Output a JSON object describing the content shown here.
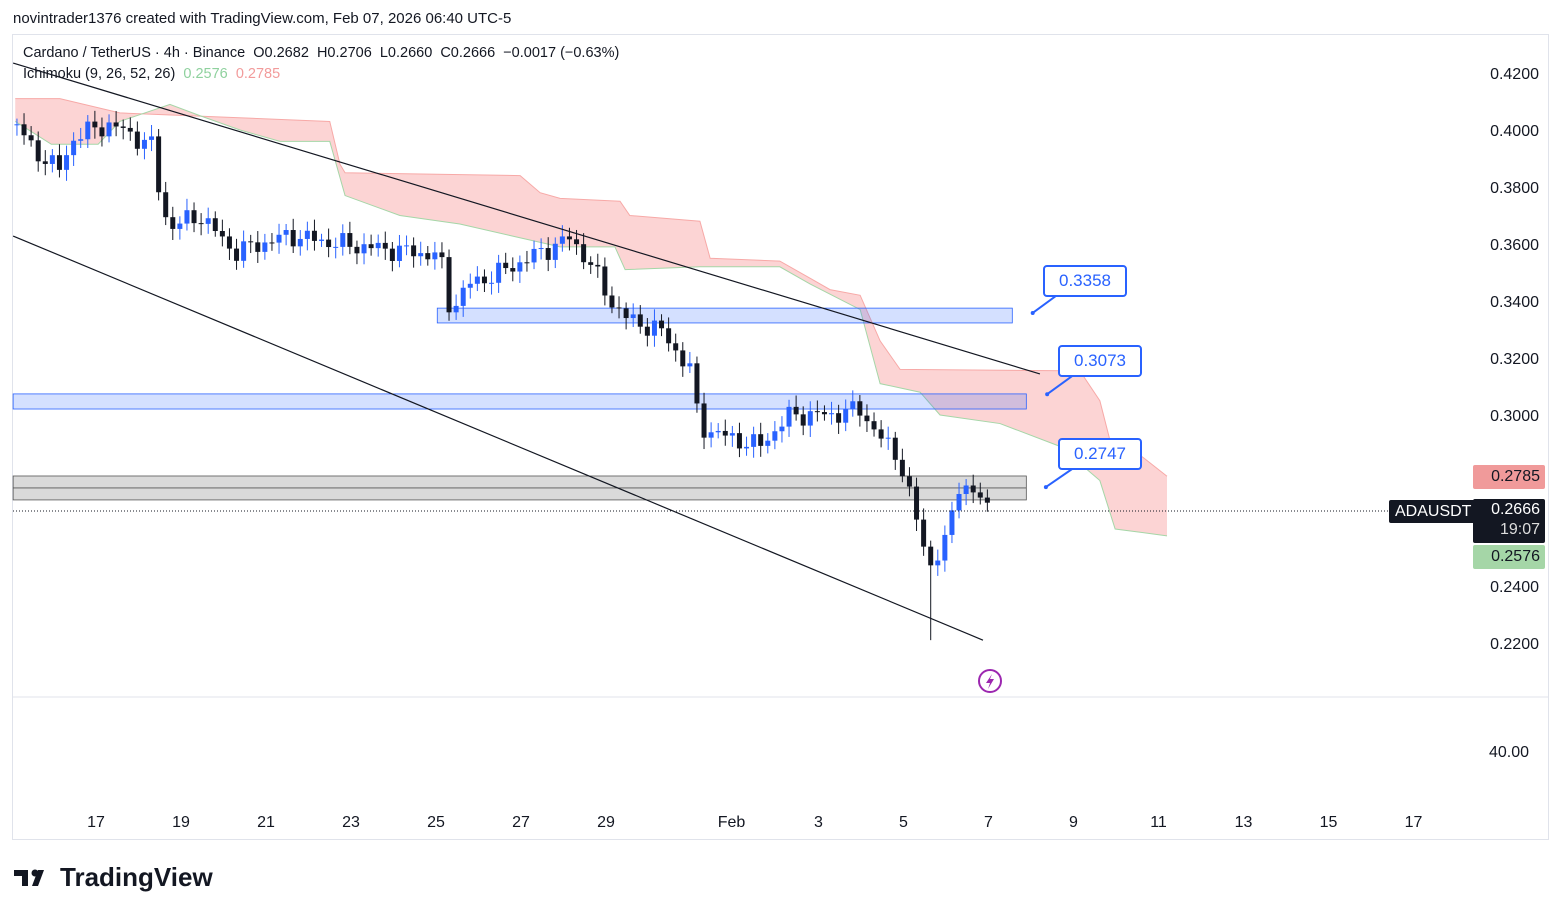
{
  "credit": "novintrader1376 created with TradingView.com, Feb 07, 2026 06:40 UTC-5",
  "legend": {
    "symbol": "Cardano / TetherUS · 4h · Binance",
    "open": "O0.2682",
    "high": "H0.2706",
    "low": "L0.2660",
    "close": "C0.2666",
    "change": "−0.0017 (−0.63%)",
    "indicator": "Ichimoku (9, 26, 52, 26)",
    "span_a": "0.2576",
    "span_b": "0.2785"
  },
  "price_axis": [
    "0.4200",
    "0.4000",
    "0.3800",
    "0.3600",
    "0.3400",
    "0.3200",
    "0.3000",
    "0.2400",
    "0.2200"
  ],
  "price_axis_values": [
    0.42,
    0.4,
    0.38,
    0.36,
    0.34,
    0.32,
    0.3,
    0.24,
    0.22
  ],
  "tags": {
    "span_b": "0.2785",
    "symbol": "ADAUSDT",
    "last": "0.2666",
    "countdown": "19:07",
    "span_a": "0.2576"
  },
  "lower_pane_label": "40.00",
  "date_axis": [
    {
      "label": "17",
      "day": 0
    },
    {
      "label": "19",
      "day": 2
    },
    {
      "label": "21",
      "day": 4
    },
    {
      "label": "23",
      "day": 6
    },
    {
      "label": "25",
      "day": 8
    },
    {
      "label": "27",
      "day": 10
    },
    {
      "label": "29",
      "day": 12
    },
    {
      "label": "Feb",
      "day": 15
    },
    {
      "label": "3",
      "day": 17
    },
    {
      "label": "5",
      "day": 19
    },
    {
      "label": "7",
      "day": 21
    },
    {
      "label": "9",
      "day": 23
    },
    {
      "label": "11",
      "day": 25
    },
    {
      "label": "13",
      "day": 27
    },
    {
      "label": "15",
      "day": 29
    },
    {
      "label": "17",
      "day": 31
    }
  ],
  "callouts": [
    "0.3358",
    "0.3073",
    "0.2747"
  ],
  "brand": "TradingView",
  "colors": {
    "up": "#2962ff",
    "down": "#131722",
    "cloud": "#fcd4d4",
    "span_a": "#a5d6a7",
    "span_b": "#f7a9a7",
    "zone_blue": "#d6e0fd",
    "zone_grey": "#d9d9d9"
  },
  "chart_data": {
    "type": "candlestick",
    "title": "Cardano / TetherUS 4h Binance",
    "x_unit": "days since Jan 17",
    "price_anchors": [
      [
        -1.86,
        0.402
      ],
      [
        -1.55,
        0.394
      ],
      [
        -0.85,
        0.386
      ],
      [
        -0.5,
        0.398
      ],
      [
        0.33,
        0.402
      ],
      [
        1.39,
        0.394
      ],
      [
        1.5,
        0.375
      ],
      [
        1.74,
        0.366
      ],
      [
        2.45,
        0.37
      ],
      [
        3.27,
        0.357
      ],
      [
        3.86,
        0.36
      ],
      [
        4.56,
        0.363
      ],
      [
        5.74,
        0.36
      ],
      [
        8.09,
        0.356
      ],
      [
        8.33,
        0.337
      ],
      [
        8.8,
        0.346
      ],
      [
        9.5,
        0.35
      ],
      [
        10.45,
        0.357
      ],
      [
        11.15,
        0.362
      ],
      [
        11.6,
        0.354
      ],
      [
        12.1,
        0.34
      ],
      [
        12.56,
        0.333
      ],
      [
        13.27,
        0.33
      ],
      [
        13.98,
        0.316
      ],
      [
        14.2,
        0.296
      ],
      [
        14.7,
        0.293
      ],
      [
        15.6,
        0.289
      ],
      [
        16.33,
        0.3
      ],
      [
        17.27,
        0.3
      ],
      [
        17.98,
        0.302
      ],
      [
        18.45,
        0.292
      ],
      [
        18.9,
        0.285
      ],
      [
        19.27,
        0.265
      ],
      [
        19.6,
        0.247
      ],
      [
        19.98,
        0.255
      ],
      [
        20.33,
        0.277
      ],
      [
        20.68,
        0.272
      ],
      [
        21.04,
        0.2666
      ]
    ],
    "extreme_low": {
      "day": 19.7,
      "price": 0.221
    },
    "cloud_top": [
      [
        -1.9,
        0.411
      ],
      [
        -0.85,
        0.411
      ],
      [
        0.56,
        0.406
      ],
      [
        5.5,
        0.403
      ],
      [
        5.74,
        0.388
      ],
      [
        5.86,
        0.385
      ],
      [
        9.98,
        0.384
      ],
      [
        10.45,
        0.378
      ],
      [
        10.92,
        0.376
      ],
      [
        12.33,
        0.375
      ],
      [
        12.56,
        0.37
      ],
      [
        14.21,
        0.368
      ],
      [
        14.45,
        0.355
      ],
      [
        16.09,
        0.354
      ],
      [
        16.8,
        0.348
      ],
      [
        17.27,
        0.344
      ],
      [
        17.98,
        0.342
      ],
      [
        18.45,
        0.326
      ],
      [
        18.92,
        0.316
      ],
      [
        23.15,
        0.3155
      ],
      [
        23.62,
        0.305
      ],
      [
        23.86,
        0.291
      ],
      [
        24.56,
        0.286
      ],
      [
        25.2,
        0.2785
      ]
    ],
    "cloud_bottom": [
      [
        -1.9,
        0.403
      ],
      [
        -1.05,
        0.395
      ],
      [
        0.05,
        0.395
      ],
      [
        0.56,
        0.403
      ],
      [
        1.74,
        0.409
      ],
      [
        2.45,
        0.405
      ],
      [
        3.39,
        0.4
      ],
      [
        4.33,
        0.396
      ],
      [
        5.5,
        0.396
      ],
      [
        5.86,
        0.377
      ],
      [
        7.15,
        0.37
      ],
      [
        8.56,
        0.367
      ],
      [
        9.74,
        0.363
      ],
      [
        10.92,
        0.359
      ],
      [
        12.21,
        0.359
      ],
      [
        12.45,
        0.351
      ],
      [
        14.21,
        0.352
      ],
      [
        16.09,
        0.352
      ],
      [
        16.8,
        0.346
      ],
      [
        17.98,
        0.337
      ],
      [
        18.45,
        0.311
      ],
      [
        19.39,
        0.308
      ],
      [
        19.86,
        0.3
      ],
      [
        21.27,
        0.297
      ],
      [
        22.68,
        0.289
      ],
      [
        23.62,
        0.277
      ],
      [
        23.98,
        0.26
      ],
      [
        25.2,
        0.2576
      ]
    ],
    "trendlines": [
      {
        "from": [
          -1.95,
          0.4235
        ],
        "to": [
          22.21,
          0.3144
        ]
      },
      {
        "from": [
          -1.95,
          0.3628
        ],
        "to": [
          20.87,
          0.221
        ]
      }
    ],
    "zones": [
      {
        "from_day": 8.03,
        "to_day": 21.56,
        "top": 0.3375,
        "bottom": 0.3323,
        "color": "blue"
      },
      {
        "from_day": -1.95,
        "to_day": 21.89,
        "top": 0.3074,
        "bottom": 0.3021,
        "color": "blue"
      },
      {
        "from_day": -1.95,
        "to_day": 21.89,
        "top": 0.2786,
        "bottom": 0.2702,
        "mid": 0.2744,
        "color": "grey"
      }
    ],
    "callout_points": [
      {
        "day": 22.04,
        "price": 0.3358
      },
      {
        "day": 22.38,
        "price": 0.3073
      },
      {
        "day": 22.35,
        "price": 0.2747
      }
    ],
    "last_price": 0.2666,
    "ylim": [
      0.2,
      0.43
    ]
  }
}
